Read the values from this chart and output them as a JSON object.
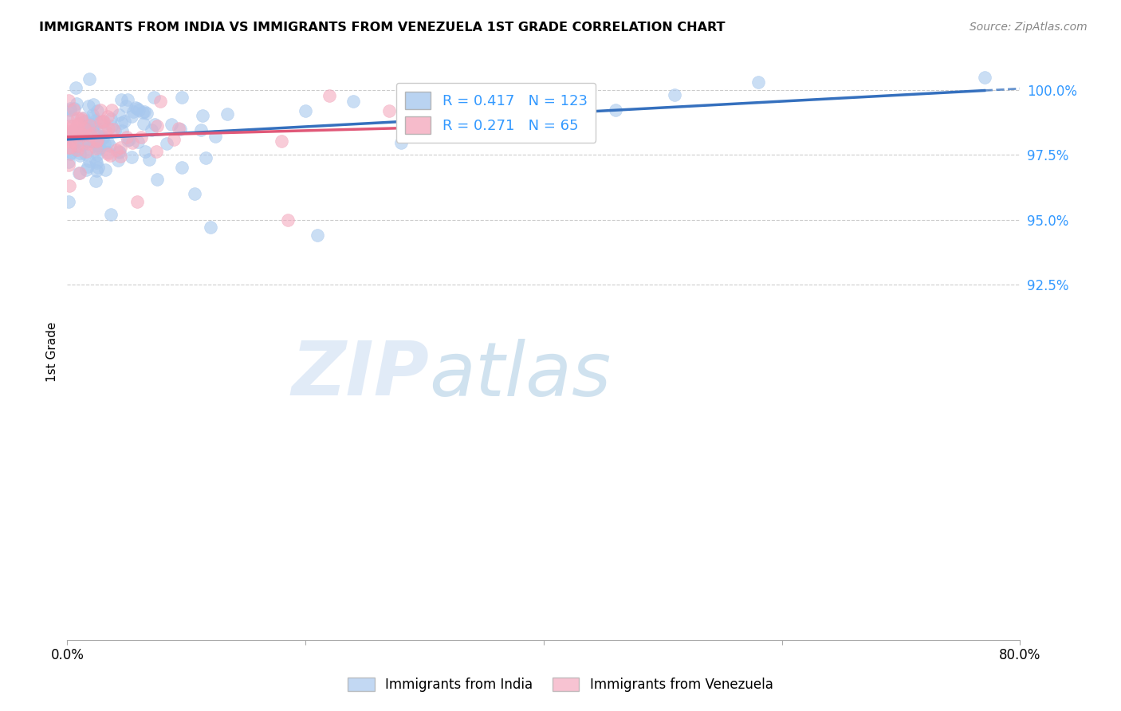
{
  "title": "IMMIGRANTS FROM INDIA VS IMMIGRANTS FROM VENEZUELA 1ST GRADE CORRELATION CHART",
  "source": "Source: ZipAtlas.com",
  "ylabel": "1st Grade",
  "x_range": [
    0.0,
    0.8
  ],
  "y_range": [
    0.788,
    1.01
  ],
  "india_R": 0.417,
  "india_N": 123,
  "venezuela_R": 0.271,
  "venezuela_N": 65,
  "india_color": "#A8C8EE",
  "venezuela_color": "#F4AABF",
  "india_line_color": "#3570BE",
  "venezuela_line_color": "#E05878",
  "watermark_zip": "ZIP",
  "watermark_atlas": "atlas",
  "y_ticks": [
    1.0,
    0.975,
    0.95,
    0.925
  ],
  "y_tick_labels": [
    "100.0%",
    "97.5%",
    "95.0%",
    "92.5%"
  ],
  "x_ticks": [
    0.0,
    0.2,
    0.4,
    0.6,
    0.8
  ],
  "x_tick_labels": [
    "0.0%",
    "",
    "",
    "",
    "80.0%"
  ]
}
